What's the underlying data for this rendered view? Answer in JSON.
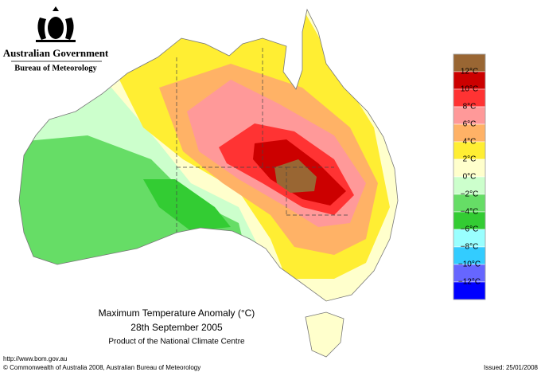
{
  "header": {
    "government": "Australian Government",
    "bureau": "Bureau of Meteorology"
  },
  "legend": {
    "colors": [
      "#996633",
      "#cc0000",
      "#ff3333",
      "#ff9999",
      "#ffb266",
      "#ffee33",
      "#ffffcc",
      "#ccffcc",
      "#66dd66",
      "#33cc33",
      "#99ffff",
      "#33ccff",
      "#6666ff",
      "#0000ff"
    ],
    "labels": [
      "12°C",
      "10°C",
      "8°C",
      "6°C",
      "4°C",
      "2°C",
      "0°C",
      "−2°C",
      "−4°C",
      "−6°C",
      "−8°C",
      "−10°C",
      "−12°C"
    ]
  },
  "caption": {
    "title": "Maximum Temperature Anomaly (°C)",
    "date": "28th September 2005",
    "source": "Product of the National Climate Centre"
  },
  "footer": {
    "url": "http://www.bom.gov.au",
    "copyright": "© Commonwealth of Australia 2008, Australian Bureau of Meteorology",
    "issued": "Issued: 25/01/2008"
  }
}
